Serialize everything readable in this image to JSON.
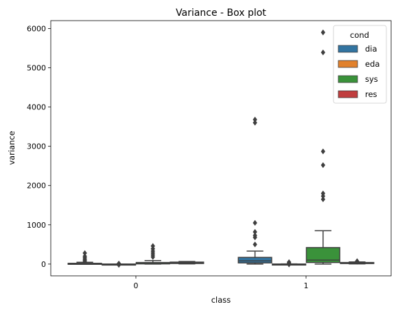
{
  "chart_data": {
    "type": "box",
    "title": "Variance - Box plot",
    "xlabel": "class",
    "ylabel": "variance",
    "categories": [
      "0",
      "1"
    ],
    "ylim": [
      -300,
      6200
    ],
    "yticks": [
      0,
      1000,
      2000,
      3000,
      4000,
      5000,
      6000
    ],
    "grid": false,
    "legend": {
      "title": "cond",
      "placement": "top-right",
      "entries": [
        "dia",
        "eda",
        "sys",
        "res"
      ]
    },
    "colors": {
      "dia": "#3274a1",
      "eda": "#e1812c",
      "sys": "#3a923a",
      "res": "#c03d3e",
      "line": "#3f3f3f"
    },
    "series": [
      {
        "name": "dia",
        "boxes": [
          {
            "category": "0",
            "whislo": 0,
            "q1": 2,
            "med": 8,
            "q3": 20,
            "whishi": 45,
            "fliers": [
              60,
              90,
              120,
              160,
              200,
              280
            ]
          },
          {
            "category": "1",
            "whislo": 0,
            "q1": 30,
            "med": 80,
            "q3": 170,
            "whishi": 330,
            "fliers": [
              500,
              680,
              730,
              820,
              1050,
              3600,
              3680
            ]
          }
        ]
      },
      {
        "name": "eda",
        "boxes": [
          {
            "category": "0",
            "whislo": 0,
            "q1": 0,
            "med": 0,
            "q3": 1,
            "whishi": 2,
            "fliers": [
              -20,
              -5,
              5,
              15
            ]
          },
          {
            "category": "1",
            "whislo": 0,
            "q1": 0,
            "med": 1,
            "q3": 2,
            "whishi": 4,
            "fliers": [
              -10,
              10,
              30,
              50
            ]
          }
        ]
      },
      {
        "name": "sys",
        "boxes": [
          {
            "category": "0",
            "whislo": 0,
            "q1": 5,
            "med": 15,
            "q3": 40,
            "whishi": 90,
            "fliers": [
              180,
              230,
              280,
              330,
              390,
              460
            ]
          },
          {
            "category": "1",
            "whislo": 0,
            "q1": 40,
            "med": 100,
            "q3": 420,
            "whishi": 850,
            "fliers": [
              1650,
              1730,
              1800,
              2520,
              2870,
              5390,
              5900
            ]
          }
        ]
      },
      {
        "name": "res",
        "boxes": [
          {
            "category": "0",
            "whislo": 5,
            "q1": 15,
            "med": 30,
            "q3": 50,
            "whishi": 65,
            "fliers": []
          },
          {
            "category": "1",
            "whislo": 5,
            "q1": 15,
            "med": 25,
            "q3": 40,
            "whishi": 55,
            "fliers": [
              60,
              75
            ]
          }
        ]
      }
    ]
  }
}
